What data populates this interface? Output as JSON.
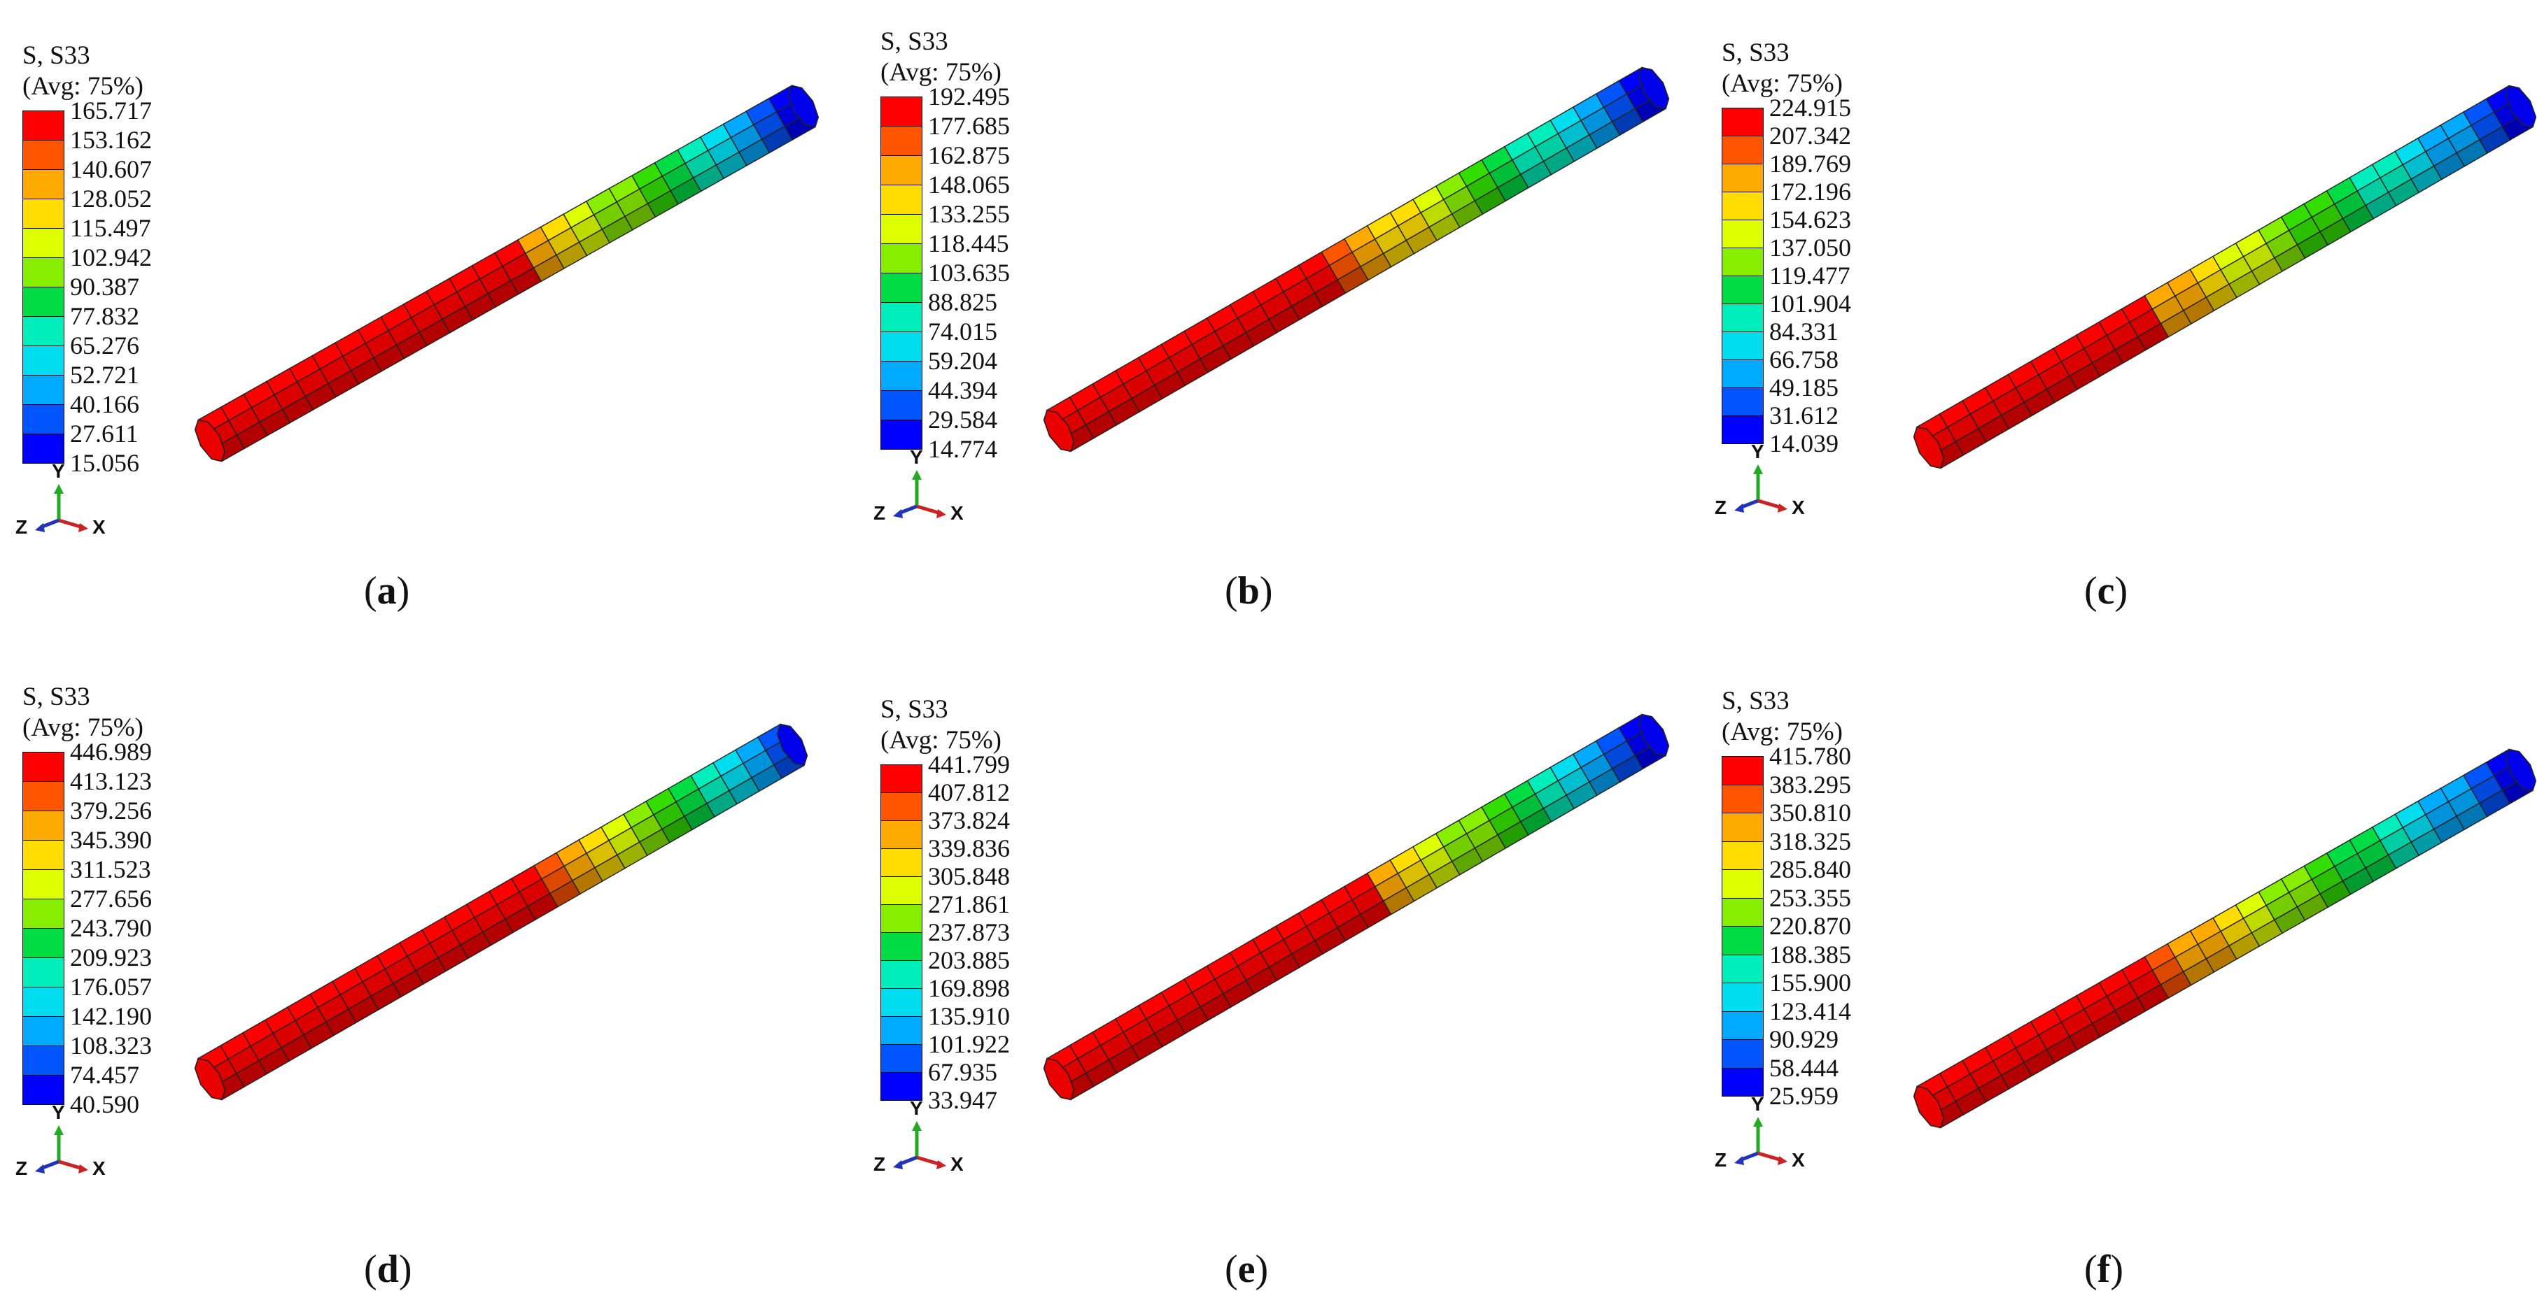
{
  "panels": [
    {
      "id": "a",
      "title_line1": "S, S33",
      "title_line2": "(Avg: 75%)",
      "legend_values": [
        "165.717",
        "153.162",
        "140.607",
        "128.052",
        "115.497",
        "102.942",
        "90.387",
        "77.832",
        "65.276",
        "52.721",
        "40.166",
        "27.611",
        "15.056"
      ],
      "caption_letter": "a",
      "high_fraction": 0.52
    },
    {
      "id": "b",
      "title_line1": "S, S33",
      "title_line2": "(Avg: 75%)",
      "legend_values": [
        "192.495",
        "177.685",
        "162.875",
        "148.065",
        "133.255",
        "118.445",
        "103.635",
        "88.825",
        "74.015",
        "59.204",
        "44.394",
        "29.584",
        "14.774"
      ],
      "caption_letter": "b",
      "high_fraction": 0.48
    },
    {
      "id": "c",
      "title_line1": "S, S33",
      "title_line2": "(Avg: 75%)",
      "legend_values": [
        "224.915",
        "207.342",
        "189.769",
        "172.196",
        "154.623",
        "137.050",
        "119.477",
        "101.904",
        "84.331",
        "66.758",
        "49.185",
        "31.612",
        "14.039"
      ],
      "caption_letter": "c",
      "high_fraction": 0.37
    },
    {
      "id": "d",
      "title_line1": "S, S33",
      "title_line2": "(Avg: 75%)",
      "legend_values": [
        "446.989",
        "413.123",
        "379.256",
        "345.390",
        "311.523",
        "277.656",
        "243.790",
        "209.923",
        "176.057",
        "142.190",
        "108.323",
        "74.457",
        "40.590"
      ],
      "caption_letter": "d",
      "high_fraction": 0.58
    },
    {
      "id": "e",
      "title_line1": "S, S33",
      "title_line2": "(Avg: 75%)",
      "legend_values": [
        "441.799",
        "407.812",
        "373.824",
        "339.836",
        "305.848",
        "271.861",
        "237.873",
        "203.885",
        "169.898",
        "135.910",
        "101.922",
        "67.935",
        "33.947"
      ],
      "caption_letter": "e",
      "high_fraction": 0.52
    },
    {
      "id": "f",
      "title_line1": "S, S33",
      "title_line2": "(Avg: 75%)",
      "legend_values": [
        "415.780",
        "383.295",
        "350.810",
        "318.325",
        "285.840",
        "253.355",
        "220.870",
        "188.385",
        "155.900",
        "123.414",
        "90.929",
        "58.444",
        "25.959"
      ],
      "caption_letter": "f",
      "high_fraction": 0.4
    }
  ],
  "triad_labels": {
    "y": "Y",
    "z": "Z",
    "x": "X"
  },
  "legend_colors": [
    "#ff0000",
    "#ff5500",
    "#ffaa00",
    "#ffdd00",
    "#ddff00",
    "#88ee00",
    "#33dd00",
    "#00dd44",
    "#00eebb",
    "#00ddee",
    "#00aaff",
    "#0055ff",
    "#0000ff"
  ],
  "caption_parens": [
    "(",
    ")"
  ]
}
